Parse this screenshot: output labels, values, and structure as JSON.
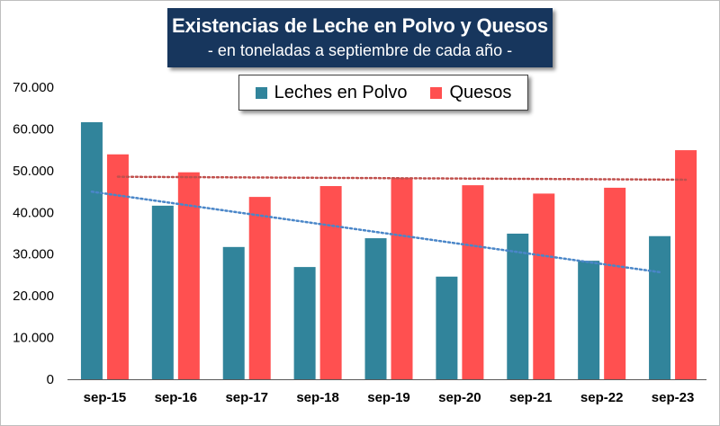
{
  "colors": {
    "series_a": "#31849b",
    "series_b": "#ff5050",
    "trend_a": "#4a86c8",
    "trend_b": "#c0504d",
    "title_bg": "#17365d",
    "axis": "#595959"
  },
  "chart_data": {
    "type": "bar",
    "title": "Existencias de Leche en Polvo y Quesos",
    "subtitle": "- en toneladas a septiembre de cada año -",
    "xlabel": "",
    "ylabel": "",
    "ylim": [
      0,
      70000
    ],
    "yticks": [
      0,
      10000,
      20000,
      30000,
      40000,
      50000,
      60000,
      70000
    ],
    "ytick_labels": [
      "0",
      "10.000",
      "20.000",
      "30.000",
      "40.000",
      "50.000",
      "60.000",
      "70.000"
    ],
    "grid": false,
    "legend_position": "top-center",
    "categories": [
      "sep-15",
      "sep-16",
      "sep-17",
      "sep-18",
      "sep-19",
      "sep-20",
      "sep-21",
      "sep-22",
      "sep-23"
    ],
    "series": [
      {
        "name": "Leches en Polvo",
        "values": [
          61600,
          41600,
          31700,
          26900,
          33800,
          24600,
          34900,
          28400,
          34300
        ]
      },
      {
        "name": "Quesos",
        "values": [
          53900,
          49600,
          43700,
          46300,
          48300,
          46500,
          44500,
          45900,
          54900
        ]
      }
    ],
    "trendlines": [
      {
        "series": "Leches en Polvo",
        "type": "linear",
        "style": "dotted"
      },
      {
        "series": "Quesos",
        "type": "linear",
        "style": "dotted"
      }
    ]
  }
}
